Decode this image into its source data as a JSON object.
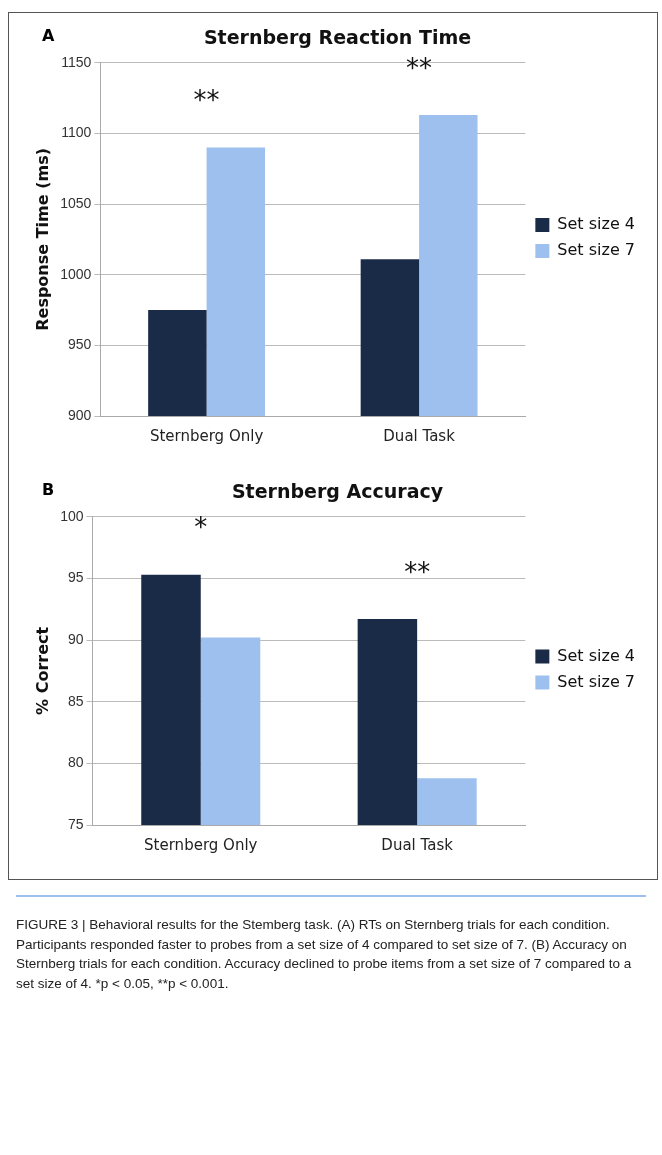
{
  "chart_data": [
    {
      "type": "bar",
      "title": "Sternberg Reaction Time",
      "ylabel": "Response Time (ms)",
      "categories": [
        "Sternberg Only",
        "Dual Task"
      ],
      "series": [
        {
          "name": "Set size 4",
          "color": "#1a2b47",
          "values": [
            975,
            1011
          ]
        },
        {
          "name": "Set size 7",
          "color": "#9dc0ef",
          "values": [
            1090,
            1113
          ]
        }
      ],
      "ylim": [
        900,
        1150
      ],
      "yticks": [
        900,
        950,
        1000,
        1050,
        1100,
        1150
      ],
      "grid": "y",
      "legend": "right",
      "annotations": [
        "A",
        "**",
        "**"
      ]
    },
    {
      "type": "bar",
      "title": "Sternberg Accuracy",
      "ylabel": "% Correct",
      "categories": [
        "Sternberg Only",
        "Dual Task"
      ],
      "series": [
        {
          "name": "Set size 4",
          "color": "#1a2b47",
          "values": [
            95.3,
            91.7
          ]
        },
        {
          "name": "Set size 7",
          "color": "#9dc0ef",
          "values": [
            90.2,
            78.8
          ]
        }
      ],
      "ylim": [
        75,
        100
      ],
      "yticks": [
        75,
        80,
        85,
        90,
        95,
        100
      ],
      "grid": "y",
      "legend": "right",
      "annotations": [
        "B",
        "*",
        "**",
        "FIGURE 3 | Behavioral results for the Stemberg task. (A) RTs on Sternberg trials for each condition. Participants responded faster to probes from a set size of 4 compared to set size of 7. (B) Accuracy on Sternberg trials for each condition. Accuracy declined to probe items from a set size of 7 compared to a set size of 4. *p < 0.05, **p < 0.001."
      ]
    }
  ]
}
